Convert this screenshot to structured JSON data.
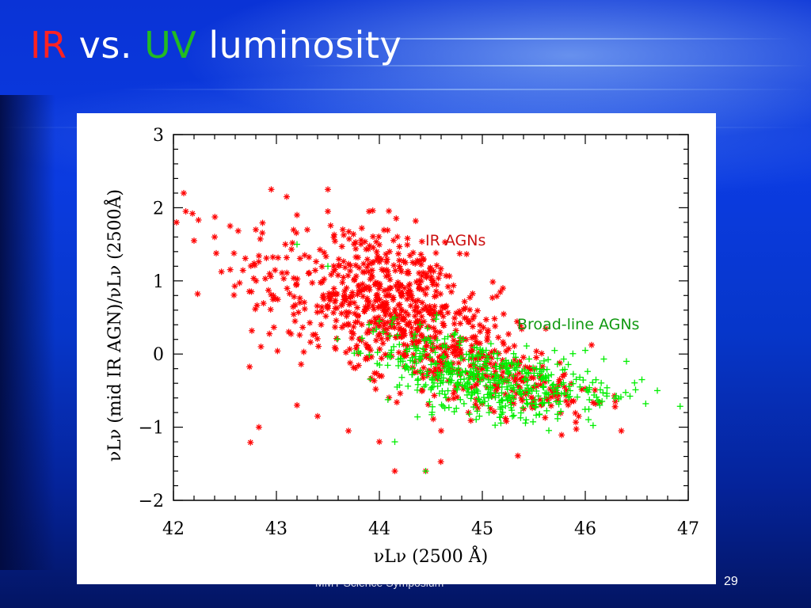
{
  "slide": {
    "title_part1": "IR",
    "title_part2": " vs. ",
    "title_part3": "UV",
    "title_part4": " luminosity",
    "footer": "MMT Science Symposium",
    "page_number": "29"
  },
  "colors": {
    "ir_series": "#ff0000",
    "bl_series": "#00ee00",
    "title_ir": "#ff2222",
    "title_uv": "#22bb22"
  },
  "chart_data": {
    "type": "scatter",
    "title": "",
    "xlabel": "νLν (2500 Å)",
    "ylabel": "νLν (mid IR AGN)/νLν (2500Å)",
    "xlim": [
      42,
      47
    ],
    "ylim": [
      -2,
      3
    ],
    "xticks": [
      "42",
      "43",
      "44",
      "45",
      "46",
      "47"
    ],
    "yticks": [
      "3",
      "2",
      "1",
      "0",
      "−1",
      "−2"
    ],
    "grid": false,
    "annotations": [
      "IR AGNs",
      "Broad-line AGNs"
    ],
    "series": [
      {
        "name": "IR AGNs",
        "marker": "asterisk",
        "color": "#ff0000",
        "clusters": [
          {
            "cx": 43.6,
            "cy": 0.8,
            "sx": 0.55,
            "sy": 0.55,
            "n": 280
          },
          {
            "cx": 44.2,
            "cy": 0.7,
            "sx": 0.3,
            "sy": 0.45,
            "n": 300
          },
          {
            "cx": 44.8,
            "cy": 0.0,
            "sx": 0.4,
            "sy": 0.4,
            "n": 220
          },
          {
            "cx": 45.4,
            "cy": -0.4,
            "sx": 0.4,
            "sy": 0.22,
            "n": 120
          }
        ],
        "points": [
          [
            42.03,
            1.8
          ],
          [
            42.1,
            2.2
          ],
          [
            42.12,
            1.95
          ],
          [
            42.2,
            1.55
          ],
          [
            42.4,
            1.6
          ],
          [
            42.55,
            1.75
          ],
          [
            42.8,
            1.7
          ],
          [
            42.95,
            2.25
          ],
          [
            43.1,
            2.15
          ],
          [
            43.2,
            1.9
          ],
          [
            43.5,
            2.25
          ],
          [
            43.5,
            1.95
          ],
          [
            43.9,
            1.95
          ],
          [
            42.85,
            0.1
          ],
          [
            42.83,
            -1.0
          ],
          [
            43.2,
            -0.7
          ],
          [
            43.4,
            -0.85
          ],
          [
            43.7,
            -1.05
          ],
          [
            44.0,
            -1.2
          ],
          [
            44.15,
            -1.6
          ],
          [
            44.6,
            -1.05
          ],
          [
            45.2,
            0.9
          ],
          [
            45.75,
            -0.35
          ],
          [
            46.35,
            -1.05
          ],
          [
            44.45,
            -1.6
          ]
        ]
      },
      {
        "name": "Broad-line AGNs",
        "marker": "plus",
        "color": "#00ee00",
        "clusters": [
          {
            "cx": 45.0,
            "cy": -0.35,
            "sx": 0.45,
            "sy": 0.25,
            "n": 320
          },
          {
            "cx": 45.8,
            "cy": -0.4,
            "sx": 0.35,
            "sy": 0.18,
            "n": 110
          },
          {
            "cx": 44.5,
            "cy": -0.2,
            "sx": 0.3,
            "sy": 0.3,
            "n": 80
          }
        ],
        "points": [
          [
            43.2,
            1.5
          ],
          [
            43.5,
            1.2
          ],
          [
            43.9,
            0.4
          ],
          [
            44.0,
            0.45
          ],
          [
            44.15,
            0.5
          ],
          [
            44.15,
            -1.2
          ],
          [
            44.45,
            -1.6
          ],
          [
            46.0,
            0.05
          ],
          [
            46.4,
            -0.1
          ],
          [
            46.7,
            -0.5
          ],
          [
            46.55,
            -0.35
          ]
        ]
      }
    ]
  }
}
